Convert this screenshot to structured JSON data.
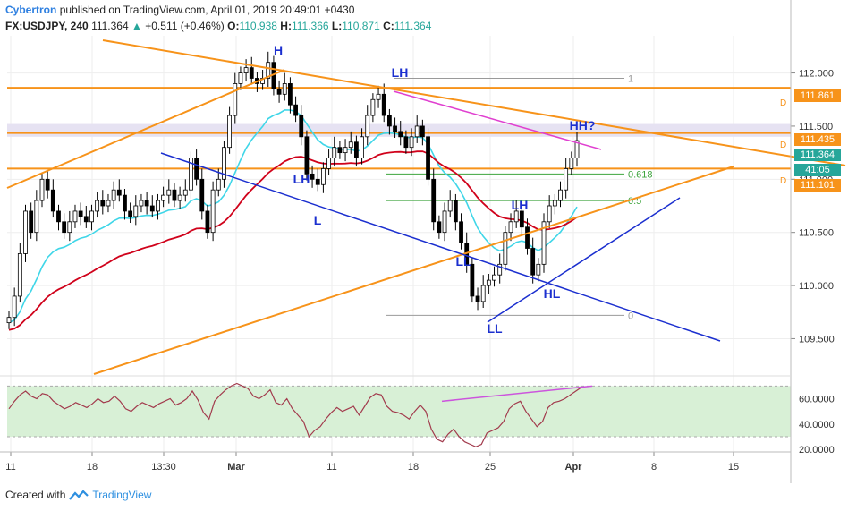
{
  "header": {
    "author": "Cybertron",
    "published": "published on TradingView.com, April 01, 2019 20:49:01 +0430",
    "symbol": "FX:USDJPY, 240",
    "last": "111.364",
    "change_arrow": "▲",
    "change": "+0.511 (+0.46%)",
    "o_label": "O:",
    "o_value": "110.938",
    "h_label": "H:",
    "h_value": "111.366",
    "l_label": "L:",
    "l_value": "110.871",
    "c_label": "C:",
    "c_value": "111.364"
  },
  "footer": {
    "created_with": "Created with",
    "brand": "TradingView"
  },
  "price_boxes": [
    {
      "text": "111.861",
      "color": "#f7931a"
    },
    {
      "text": "111.435",
      "color": "#f7931a"
    },
    {
      "text": "111.364",
      "color": "#26a69a"
    },
    {
      "text": "41:05",
      "color": "#26a69a"
    },
    {
      "text": "111.101",
      "color": "#f7931a"
    }
  ],
  "d_marks": [
    "D",
    "D",
    "D"
  ],
  "colors": {
    "orange": "#f7931a",
    "blue": "#1b2fcf",
    "cyan": "#3fd6e8",
    "red": "#d0021b",
    "magenta": "#e040d0",
    "label_blue": "#1b2fcf",
    "candle": "#000000",
    "rsi_line": "#a23b4d",
    "rsi_band": "#d8f0d6",
    "rsi_divergence": "#cc55dd",
    "fib_line": "#9a9a9a",
    "fib_0618": "#3da43d",
    "grid": "#eeeeee"
  },
  "chart_data": {
    "type": "candlestick",
    "x_tick_labels": [
      "11",
      "18",
      "13:30",
      "Mar",
      "11",
      "18",
      "25",
      "Apr",
      "8",
      "15"
    ],
    "y_tick_labels": [
      "112.000",
      "111.500",
      "111.000",
      "110.500",
      "110.000",
      "109.500"
    ],
    "ylim": [
      109.15,
      112.35
    ],
    "last_price": 111.364,
    "close_path": [
      109.7,
      109.9,
      110.3,
      110.7,
      110.5,
      110.8,
      111.0,
      110.9,
      110.7,
      110.6,
      110.5,
      110.6,
      110.7,
      110.65,
      110.6,
      110.7,
      110.8,
      110.75,
      110.8,
      110.9,
      110.85,
      110.7,
      110.65,
      110.75,
      110.8,
      110.75,
      110.7,
      110.8,
      110.85,
      110.9,
      110.8,
      110.85,
      110.9,
      111.2,
      111.0,
      110.7,
      110.5,
      110.9,
      111.0,
      111.3,
      111.6,
      111.9,
      112.0,
      112.05,
      111.95,
      111.9,
      111.95,
      112.1,
      111.85,
      111.8,
      111.9,
      111.7,
      111.6,
      111.4,
      111.05,
      111.0,
      110.95,
      111.1,
      111.2,
      111.3,
      111.25,
      111.3,
      111.35,
      111.2,
      111.4,
      111.6,
      111.75,
      111.8,
      111.6,
      111.5,
      111.45,
      111.4,
      111.3,
      111.4,
      111.5,
      111.4,
      111.0,
      110.6,
      110.5,
      110.7,
      110.8,
      110.6,
      110.4,
      110.2,
      109.9,
      109.85,
      110.0,
      110.05,
      110.1,
      110.2,
      110.5,
      110.6,
      110.7,
      110.55,
      110.35,
      110.1,
      110.2,
      110.6,
      110.75,
      110.8,
      110.9,
      111.1,
      111.2,
      111.364
    ],
    "rsi": {
      "levels": [
        70,
        30
      ],
      "y_tick_labels": [
        "60.0000",
        "40.0000",
        "20.0000"
      ],
      "ylim": [
        18,
        78
      ],
      "values": [
        52,
        58,
        63,
        66,
        62,
        60,
        64,
        63,
        58,
        55,
        52,
        54,
        57,
        55,
        53,
        56,
        60,
        57,
        58,
        62,
        58,
        52,
        50,
        54,
        57,
        55,
        53,
        56,
        58,
        60,
        55,
        57,
        60,
        66,
        59,
        49,
        44,
        58,
        63,
        67,
        70,
        72,
        70,
        68,
        62,
        60,
        63,
        67,
        57,
        55,
        60,
        52,
        47,
        42,
        30,
        35,
        38,
        44,
        49,
        53,
        50,
        52,
        54,
        47,
        54,
        61,
        64,
        63,
        54,
        50,
        49,
        47,
        44,
        50,
        55,
        50,
        36,
        28,
        26,
        32,
        36,
        30,
        26,
        24,
        22,
        24,
        33,
        35,
        37,
        42,
        52,
        56,
        58,
        50,
        44,
        38,
        42,
        53,
        57,
        58,
        60,
        63,
        66,
        69
      ]
    },
    "horizontal_levels": [
      111.861,
      111.435,
      111.101
    ],
    "fib_levels": [
      {
        "label": "1",
        "price": 111.95
      },
      {
        "label": "0.618",
        "price": 111.05
      },
      {
        "label": "0.5",
        "price": 110.8
      },
      {
        "label": "0",
        "price": 109.72
      }
    ],
    "annotations": [
      "H",
      "LH",
      "HH?",
      "LH",
      "L",
      "LH",
      "LL",
      "HL",
      "LL"
    ]
  }
}
